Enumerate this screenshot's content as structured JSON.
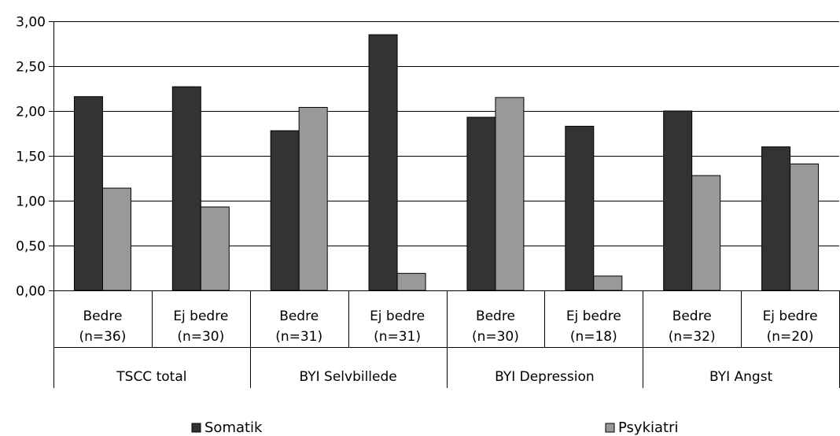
{
  "chart_data": {
    "type": "bar",
    "ylim": [
      0,
      3
    ],
    "yticks": [
      "0,00",
      "0,50",
      "1,00",
      "1,50",
      "2,00",
      "2,50",
      "3,00"
    ],
    "yticks_values": [
      0,
      0.5,
      1,
      1.5,
      2,
      2.5,
      3
    ],
    "grid": true,
    "legend_position": "bottom",
    "groups": [
      {
        "label": "TSCC total",
        "categories": [
          0,
          1
        ]
      },
      {
        "label": "BYI Selvbillede",
        "categories": [
          2,
          3
        ]
      },
      {
        "label": "BYI Depression",
        "categories": [
          4,
          5
        ]
      },
      {
        "label": "BYI Angst",
        "categories": [
          6,
          7
        ]
      }
    ],
    "categories": [
      {
        "line1": "Bedre",
        "line2": "(n=36)"
      },
      {
        "line1": "Ej bedre",
        "line2": "(n=30)"
      },
      {
        "line1": "Bedre",
        "line2": "(n=31)"
      },
      {
        "line1": "Ej bedre",
        "line2": "(n=31)"
      },
      {
        "line1": "Bedre",
        "line2": "(n=30)"
      },
      {
        "line1": "Ej bedre",
        "line2": "(n=18)"
      },
      {
        "line1": "Bedre",
        "line2": "(n=32)"
      },
      {
        "line1": "Ej bedre",
        "line2": "(n=20)"
      }
    ],
    "series": [
      {
        "name": "Somatik",
        "color": "#333333",
        "values": [
          2.16,
          2.27,
          1.78,
          2.85,
          1.93,
          1.83,
          2.0,
          1.6
        ]
      },
      {
        "name": "Psykiatri",
        "color": "#999999",
        "values": [
          1.14,
          0.93,
          2.04,
          0.19,
          2.15,
          0.16,
          1.28,
          1.41
        ]
      }
    ]
  }
}
